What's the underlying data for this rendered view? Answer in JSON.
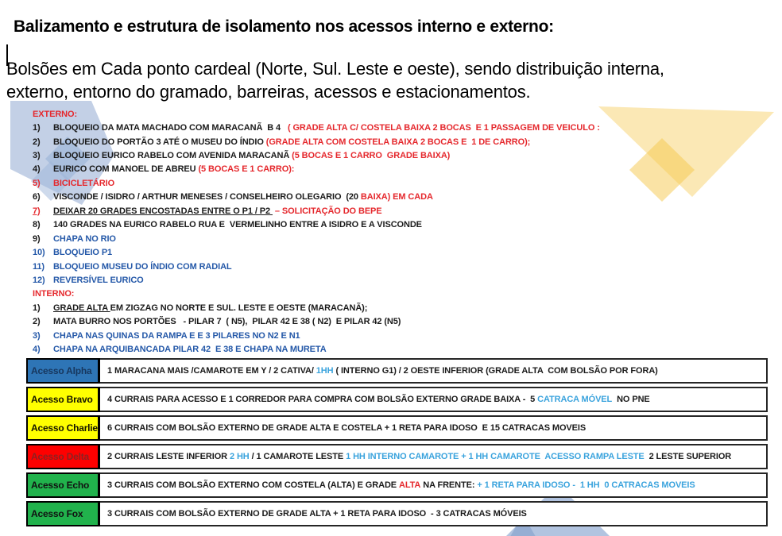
{
  "title": "Balizamento e estrutura de isolamento nos acessos interno e externo:",
  "intro": "Bolsões em Cada ponto cardeal (Norte, Sul. Leste e oeste), sendo distribuição interna,\nexterno, entorno do gramado, barreiras, acessos e estacionamentos.",
  "colors": {
    "black": "#1a1a1a",
    "red": "#e5282d",
    "blue": "#2458a8",
    "lightblue": "#3aa3dd",
    "row_blue_bg": "#2e75b6",
    "row_yellow_bg": "#ffff00",
    "row_red_bg": "#fe0000",
    "row_green_bg": "#21b24c",
    "label_navy": "#17375e",
    "label_black": "#141400",
    "label_darkred": "#8b2222",
    "label_green_black": "#111111"
  },
  "externo": {
    "heading": "EXTERNO:",
    "items": [
      {
        "num": "1)",
        "num_color": "black",
        "segments": [
          {
            "text": "BLOQUEIO DA MATA MACHADO COM MARACANÃ  B 4   ",
            "color": "black"
          },
          {
            "text": "( GRADE ALTA C/ COSTELA BAIXA 2 BOCAS  E 1 PASSAGEM DE VEICULO :",
            "color": "red"
          }
        ]
      },
      {
        "num": "2)",
        "num_color": "black",
        "segments": [
          {
            "text": "BLOQUEIO DO PORTÃO 3 ATÉ O MUSEU DO ÍNDIO ",
            "color": "black"
          },
          {
            "text": "(GRADE ALTA COM COSTELA BAIXA 2 BOCAS E  1 DE CARRO);",
            "color": "red"
          }
        ]
      },
      {
        "num": "3)",
        "num_color": "black",
        "segments": [
          {
            "text": "BLOQUEIO EURICO RABELO COM AVENIDA MARACANÃ ",
            "color": "black"
          },
          {
            "text": "(5 BOCAS E 1 CARRO  GRADE BAIXA)",
            "color": "red"
          }
        ]
      },
      {
        "num": "4)",
        "num_color": "black",
        "segments": [
          {
            "text": "EURICO COM MANOEL DE ABREU ",
            "color": "black"
          },
          {
            "text": "(5 BOCAS E 1 CARRO):",
            "color": "red"
          }
        ]
      },
      {
        "num": "5)",
        "num_color": "red",
        "segments": [
          {
            "text": "BICICLETÁRIO",
            "color": "red"
          }
        ]
      },
      {
        "num": "6)",
        "num_color": "black",
        "segments": [
          {
            "text": "VISCONDE / ISIDRO / ARTHUR MENESES / CONSELHEIRO OLEGARIO  (20 ",
            "color": "black"
          },
          {
            "text": "BAIXA) EM CADA",
            "color": "red"
          }
        ]
      },
      {
        "num": "7)",
        "num_color": "red",
        "num_underline": true,
        "segments": [
          {
            "text": "DEIXAR 20 GRADES ENCOSTADAS ENTRE O P1 / P2 ",
            "color": "black",
            "u": true
          },
          {
            "text": " – SOLICITAÇÃO DO BEPE",
            "color": "red"
          }
        ]
      },
      {
        "num": "8)",
        "num_color": "black",
        "segments": [
          {
            "text": "140 GRADES NA EURICO RABELO RUA E  VERMELINHO ENTRE A ISIDRO E A VISCONDE",
            "color": "black"
          }
        ]
      },
      {
        "num": "9)",
        "num_color": "black",
        "segments": [
          {
            "text": "CHAPA NO RIO",
            "color": "blue"
          }
        ]
      },
      {
        "num": "10)",
        "num_color": "blue",
        "segments": [
          {
            "text": "BLOQUEIO P1",
            "color": "blue"
          }
        ]
      },
      {
        "num": "11)",
        "num_color": "blue",
        "segments": [
          {
            "text": "BLOQUEIO MUSEU DO ÍNDIO COM RADIAL",
            "color": "blue"
          }
        ]
      },
      {
        "num": "12)",
        "num_color": "blue",
        "segments": [
          {
            "text": "REVERSÍVEL EURICO",
            "color": "blue"
          }
        ]
      }
    ]
  },
  "interno": {
    "heading": "INTERNO:",
    "items": [
      {
        "num": "1)",
        "num_color": "black",
        "segments": [
          {
            "text": "GRADE ALTA ",
            "color": "black",
            "u": true
          },
          {
            "text": "EM ZIGZAG NO NORTE E SUL. LESTE E OESTE (MARACANÃ);",
            "color": "black"
          }
        ]
      },
      {
        "num": "2)",
        "num_color": "black",
        "segments": [
          {
            "text": "MATA BURRO NOS PORTÕES   - PILAR 7  ( N5),  PILAR 42 E 38 ( N2)  E PILAR 42 (N5)",
            "color": "black"
          }
        ]
      },
      {
        "num": "3)",
        "num_color": "blue",
        "segments": [
          {
            "text": "CHAPA NAS QUINAS DA RAMPA E E 3 PILARES NO N2 E N1",
            "color": "blue"
          }
        ]
      },
      {
        "num": "4)",
        "num_color": "blue",
        "segments": [
          {
            "text": "CHAPA NA ARQUIBANCADA PILAR 42  E 38 E CHAPA NA MURETA",
            "color": "blue"
          }
        ]
      }
    ]
  },
  "table": {
    "rows": [
      {
        "label": "Acesso Alpha",
        "label_bg": "row_blue_bg",
        "label_fg": "label_navy",
        "segments": [
          {
            "text": "1 MARACANA MAIS /CAMAROTE EM Y / 2 CATIVA/ ",
            "color": "black"
          },
          {
            "text": "1HH",
            "color": "lightblue"
          },
          {
            "text": " ( INTERNO G1) / 2 OESTE INFERIOR (GRADE ALTA  COM BOLSÃO POR FORA)",
            "color": "black"
          }
        ]
      },
      {
        "label": "Acesso Bravo",
        "label_bg": "row_yellow_bg",
        "label_fg": "label_black",
        "segments": [
          {
            "text": "4 CURRAIS PARA ACESSO E 1 CORREDOR PARA COMPRA COM BOLSÃO EXTERNO GRADE BAIXA -  5 ",
            "color": "black"
          },
          {
            "text": "CATRACA MÓVEL",
            "color": "lightblue"
          },
          {
            "text": "  NO PNE",
            "color": "black"
          }
        ]
      },
      {
        "label": "Acesso Charlie",
        "label_bg": "row_yellow_bg",
        "label_fg": "label_black",
        "segments": [
          {
            "text": "6 CURRAIS COM BOLSÃO EXTERNO DE GRADE ALTA E COSTELA + 1 RETA PARA IDOSO  E 15 CATRACAS MOVEIS",
            "color": "black"
          }
        ]
      },
      {
        "label": "Acesso Delta",
        "label_bg": "row_red_bg",
        "label_fg": "label_darkred",
        "segments": [
          {
            "text": "2 CURRAIS LESTE INFERIOR ",
            "color": "black"
          },
          {
            "text": "2 HH",
            "color": "lightblue"
          },
          {
            "text": " / 1 CAMAROTE LESTE ",
            "color": "black"
          },
          {
            "text": "1 HH INTERNO CAMAROTE + 1 HH CAMAROTE  ACESSO RAMPA LESTE",
            "color": "lightblue"
          },
          {
            "text": "  2 LESTE SUPERIOR",
            "color": "black"
          }
        ]
      },
      {
        "label": "Acesso Echo",
        "label_bg": "row_green_bg",
        "label_fg": "label_green_black",
        "segments": [
          {
            "text": "3 CURRAIS COM BOLSÃO EXTERNO COM COSTELA (ALTA) E GRADE ",
            "color": "black"
          },
          {
            "text": "ALTA",
            "color": "red"
          },
          {
            "text": " NA FRENTE: ",
            "color": "black"
          },
          {
            "text": "+ 1 RETA PARA IDOSO -  1 HH  0 CATRACAS MOVEIS",
            "color": "lightblue"
          }
        ]
      },
      {
        "label": "Acesso Fox",
        "label_bg": "row_green_bg",
        "label_fg": "label_green_black",
        "segments": [
          {
            "text": "3 CURRAIS COM BOLSÃO EXTERNO DE GRADE ALTA + 1 RETA PARA IDOSO  - 3 CATRACAS MÓVEIS",
            "color": "black"
          }
        ]
      }
    ]
  }
}
